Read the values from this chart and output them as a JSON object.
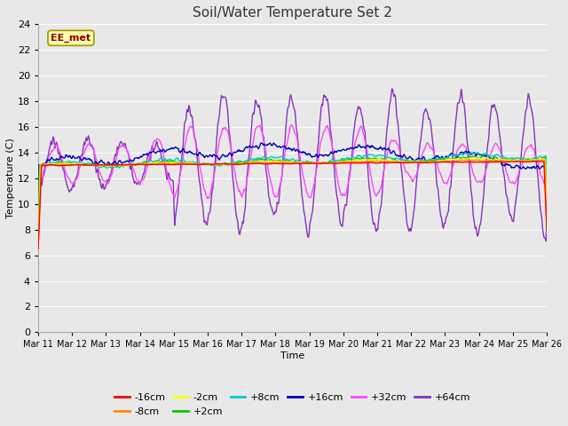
{
  "title": "Soil/Water Temperature Set 2",
  "xlabel": "Time",
  "ylabel": "Temperature (C)",
  "ylim": [
    0,
    24
  ],
  "yticks": [
    0,
    2,
    4,
    6,
    8,
    10,
    12,
    14,
    16,
    18,
    20,
    22,
    24
  ],
  "x_labels": [
    "Mar 11",
    "Mar 12",
    "Mar 13",
    "Mar 14",
    "Mar 15",
    "Mar 16",
    "Mar 17",
    "Mar 18",
    "Mar 19",
    "Mar 20",
    "Mar 21",
    "Mar 22",
    "Mar 23",
    "Mar 24",
    "Mar 25",
    "Mar 26"
  ],
  "annotation_text": "EE_met",
  "annotation_color": "#8B0000",
  "annotation_bg": "#FFFFAA",
  "annotation_border": "#999900",
  "series_order": [
    "-16cm",
    "-8cm",
    "-2cm",
    "+2cm",
    "+8cm",
    "+16cm",
    "+32cm",
    "+64cm"
  ],
  "series_colors": {
    "-16cm": "#FF0000",
    "-8cm": "#FF8800",
    "-2cm": "#FFFF00",
    "+2cm": "#00CC00",
    "+8cm": "#00CCCC",
    "+16cm": "#0000BB",
    "+32cm": "#FF44FF",
    "+64cm": "#8833BB"
  },
  "bg_color": "#E8E8E8",
  "grid_color": "#FFFFFF",
  "figsize": [
    6.4,
    4.8
  ],
  "dpi": 100
}
